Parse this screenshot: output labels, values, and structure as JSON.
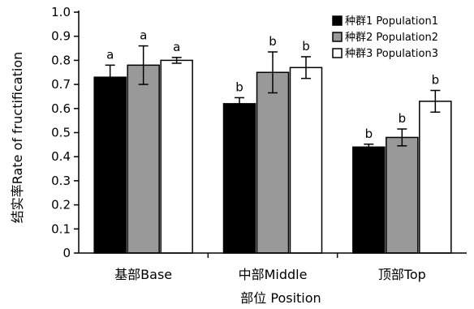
{
  "chart_data": {
    "type": "bar",
    "xlabel": "部位 Position",
    "ylabel": "结实率Rate of fructification",
    "ylim": [
      0,
      1.0
    ],
    "yticks": [
      "0",
      "0.1",
      "0.2",
      "0.3",
      "0.4",
      "0.5",
      "0.6",
      "0.7",
      "0.8",
      "0.9",
      "1.0"
    ],
    "categories": [
      "基部Base",
      "中部Middle",
      "顶部Top"
    ],
    "legend_position": "top-right",
    "series": [
      {
        "name": "种群1 Population1",
        "color": "#000000",
        "values": [
          0.73,
          0.62,
          0.44
        ],
        "errors": [
          0.05,
          0.025,
          0.012
        ],
        "letters": [
          "a",
          "b",
          "b"
        ]
      },
      {
        "name": "种群2 Population2",
        "color": "#999999",
        "values": [
          0.78,
          0.75,
          0.48
        ],
        "errors": [
          0.08,
          0.085,
          0.035
        ],
        "letters": [
          "a",
          "b",
          "b"
        ]
      },
      {
        "name": "种群3 Population3",
        "color": "#ffffff",
        "values": [
          0.8,
          0.77,
          0.63
        ],
        "errors": [
          0.012,
          0.045,
          0.045
        ],
        "letters": [
          "a",
          "b",
          "b"
        ]
      }
    ]
  }
}
